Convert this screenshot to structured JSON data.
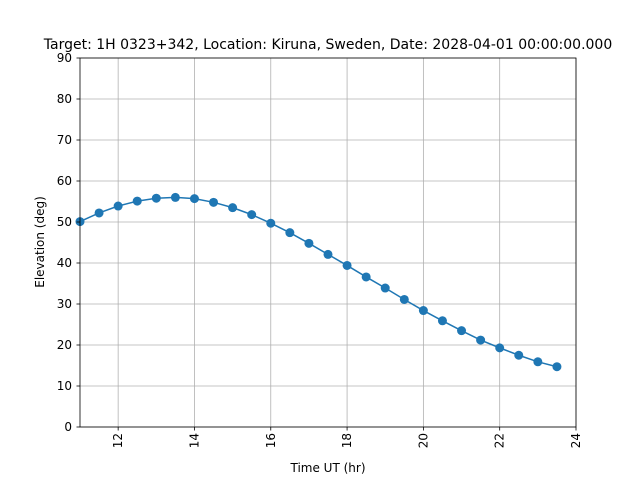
{
  "chart_data": {
    "type": "line",
    "title": "Target: 1H 0323+342,  Location: Kiruna, Sweden, Date: 2028-04-01 00:00:00.000",
    "xlabel": "Time UT (hr)",
    "ylabel": "Elevation (deg)",
    "xlim": [
      11,
      24
    ],
    "ylim": [
      0,
      90
    ],
    "xticks": [
      12,
      14,
      16,
      18,
      20,
      22,
      24
    ],
    "yticks": [
      0,
      10,
      20,
      30,
      40,
      50,
      60,
      70,
      80,
      90
    ],
    "grid": true,
    "colors": {
      "line": "#1f77b4",
      "grid": "#b0b0b0"
    },
    "series": [
      {
        "x": [
          11,
          11.5,
          12,
          12.5,
          13,
          13.5,
          14,
          14.5,
          15,
          15.5,
          16,
          16.5,
          17,
          17.5,
          18,
          18.5,
          19,
          19.5,
          20,
          20.5,
          21,
          21.5,
          22,
          22.5,
          23,
          23.5
        ],
        "y": [
          50.1,
          52.2,
          53.9,
          55.1,
          55.8,
          56.0,
          55.7,
          54.8,
          53.5,
          51.8,
          49.7,
          47.4,
          44.8,
          42.1,
          39.4,
          36.6,
          33.9,
          31.1,
          28.4,
          25.9,
          23.5,
          21.2,
          19.3,
          17.5,
          15.9,
          14.7
        ]
      }
    ]
  }
}
